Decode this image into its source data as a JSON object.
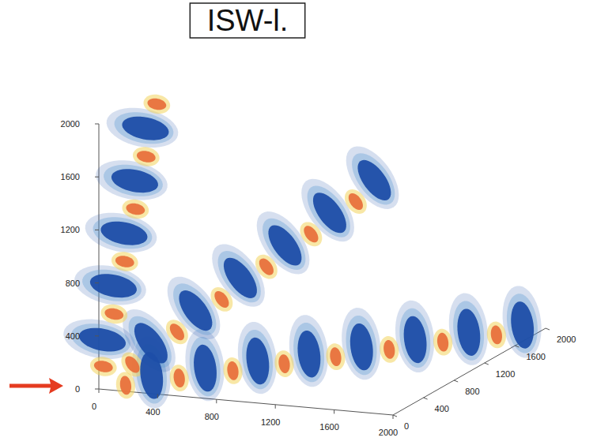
{
  "chart_data": {
    "type": "isosurface_3d",
    "title": "ISW-l.",
    "xlim": [
      0,
      2000
    ],
    "ylim": [
      0,
      2000
    ],
    "zlim": [
      0,
      2000
    ],
    "xticks": [
      0,
      400,
      800,
      1200,
      1600,
      2000
    ],
    "yticks": [
      0,
      400,
      800,
      1200,
      1600,
      2000
    ],
    "zticks": [
      0,
      400,
      800,
      1200,
      1600,
      2000
    ],
    "series": [
      {
        "color": "#1d4ea8",
        "x": [
          240,
          480,
          715,
          945,
          1180,
          1420,
          1660,
          1900,
          0,
          0,
          0,
          0,
          0,
          250,
          450,
          650,
          850,
          1050,
          1250
        ],
        "y": [
          240,
          480,
          715,
          945,
          1180,
          1420,
          1660,
          1900,
          128,
          272,
          412,
          552,
          692,
          250,
          450,
          650,
          850,
          1050,
          1250
        ],
        "z": [
          0,
          0,
          0,
          0,
          0,
          0,
          0,
          0,
          320,
          680,
          1030,
          1380,
          1730,
          250,
          450,
          650,
          850,
          1050,
          1250
        ]
      },
      {
        "color": "#e8713c",
        "x": [
          120,
          360,
          600,
          830,
          1060,
          1300,
          1540,
          1780,
          0,
          0,
          0,
          0,
          0,
          0,
          150,
          350,
          550,
          750,
          950,
          1150
        ],
        "y": [
          120,
          360,
          600,
          830,
          1060,
          1300,
          1540,
          1780,
          60,
          200,
          340,
          480,
          620,
          760,
          150,
          350,
          550,
          750,
          950,
          1150
        ],
        "z": [
          0,
          0,
          0,
          0,
          0,
          0,
          0,
          0,
          150,
          500,
          850,
          1200,
          1550,
          1900,
          150,
          350,
          550,
          750,
          950,
          1150
        ]
      }
    ]
  }
}
